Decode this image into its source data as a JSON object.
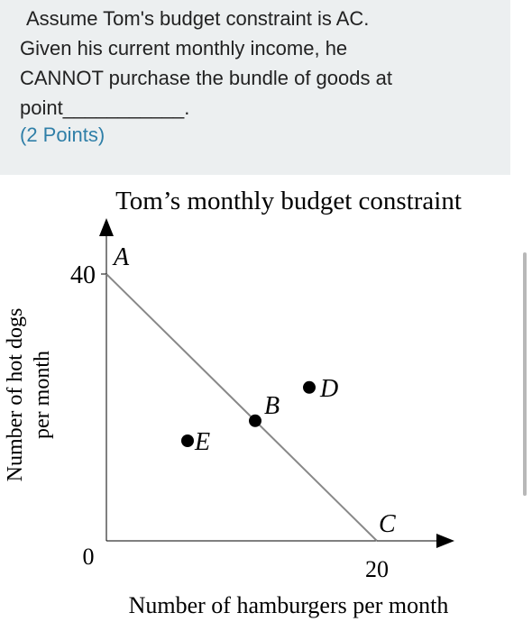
{
  "question": {
    "lines": [
      "Assume Tom's budget constraint is AC.",
      "Given his current monthly income, he",
      "CANNOT purchase the bundle of goods at",
      "point___________."
    ],
    "points": "(2 Points)"
  },
  "chart_data": {
    "type": "scatter",
    "title": "Tom’s monthly budget constraint",
    "xlabel": "Number of hamburgers per month",
    "ylabel": "Number of hot dogs per month",
    "ylabel_lines": [
      "Number of hot dogs",
      "per month"
    ],
    "xlim": [
      0,
      20
    ],
    "ylim": [
      0,
      40
    ],
    "x_tick_labels": [
      "0",
      "20"
    ],
    "y_tick_labels": [
      "40"
    ],
    "budget_line": {
      "from": "A",
      "to": "C",
      "points": [
        [
          0,
          40
        ],
        [
          20,
          0
        ]
      ]
    },
    "points": [
      {
        "label": "A",
        "x": 0,
        "y": 40,
        "marker": false
      },
      {
        "label": "B",
        "x": 11,
        "y": 18,
        "marker": true
      },
      {
        "label": "C",
        "x": 20,
        "y": 0,
        "marker": false
      },
      {
        "label": "D",
        "x": 15,
        "y": 23,
        "marker": true
      },
      {
        "label": "E",
        "x": 6,
        "y": 15,
        "marker": true
      }
    ]
  },
  "colors": {
    "panel_bg": "#eceff0",
    "question_text": "#222222",
    "points_text": "#2f7fa8",
    "axis": "#000000",
    "budget_line": "#888888",
    "scrollbar": "#b8b8b8"
  }
}
